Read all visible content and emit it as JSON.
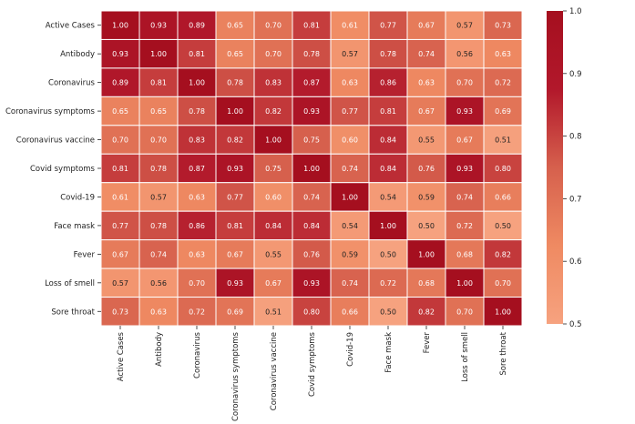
{
  "chart_data": {
    "type": "heatmap",
    "title": "",
    "xlabel": "",
    "ylabel": "",
    "labels": [
      "Active Cases",
      "Antibody",
      "Coronavirus",
      "Coronavirus symptoms",
      "Coronavirus vaccine",
      "Covid symptoms",
      "Covid-19",
      "Face mask",
      "Fever",
      "Loss of smell",
      "Sore throat"
    ],
    "cell_values": [
      [
        "1.00",
        "0.93",
        "0.89",
        "0.65",
        "0.70",
        "0.81",
        "0.61",
        "0.77",
        "0.67",
        "0.57",
        "0.73"
      ],
      [
        "0.93",
        "1.00",
        "0.81",
        "0.65",
        "0.70",
        "0.78",
        "0.57",
        "0.78",
        "0.74",
        "0.56",
        "0.63"
      ],
      [
        "0.89",
        "0.81",
        "1.00",
        "0.78",
        "0.83",
        "0.87",
        "0.63",
        "0.86",
        "0.63",
        "0.70",
        "0.72"
      ],
      [
        "0.65",
        "0.65",
        "0.78",
        "1.00",
        "0.82",
        "0.93",
        "0.77",
        "0.81",
        "0.67",
        "0.93",
        "0.69"
      ],
      [
        "0.70",
        "0.70",
        "0.83",
        "0.82",
        "1.00",
        "0.75",
        "0.60",
        "0.84",
        "0.55",
        "0.67",
        "0.51"
      ],
      [
        "0.81",
        "0.78",
        "0.87",
        "0.93",
        "0.75",
        "1.00",
        "0.74",
        "0.84",
        "0.76",
        "0.93",
        "0.80"
      ],
      [
        "0.61",
        "0.57",
        "0.63",
        "0.77",
        "0.60",
        "0.74",
        "1.00",
        "0.54",
        "0.59",
        "0.74",
        "0.66"
      ],
      [
        "0.77",
        "0.78",
        "0.86",
        "0.81",
        "0.84",
        "0.84",
        "0.54",
        "1.00",
        "0.50",
        "0.72",
        "0.50"
      ],
      [
        "0.67",
        "0.74",
        "0.63",
        "0.67",
        "0.55",
        "0.76",
        "0.59",
        "0.50",
        "1.00",
        "0.68",
        "0.82"
      ],
      [
        "0.57",
        "0.56",
        "0.70",
        "0.93",
        "0.67",
        "0.93",
        "0.74",
        "0.72",
        "0.68",
        "1.00",
        "0.70"
      ],
      [
        "0.73",
        "0.63",
        "0.72",
        "0.69",
        "0.51",
        "0.80",
        "0.66",
        "0.50",
        "0.82",
        "0.70",
        "1.00"
      ]
    ],
    "value_range": [
      0.5,
      1.0
    ],
    "colorbar_ticks": [
      "1.0",
      "0.9",
      "0.8",
      "0.7",
      "0.6",
      "0.5"
    ],
    "colormap": [
      "#f6a27f",
      "#ef8a62",
      "#d6604d",
      "#b2182b",
      "#a50f1f"
    ],
    "cell_border_color": "#ffffff",
    "grid": false,
    "legend": "colorbar-right"
  }
}
